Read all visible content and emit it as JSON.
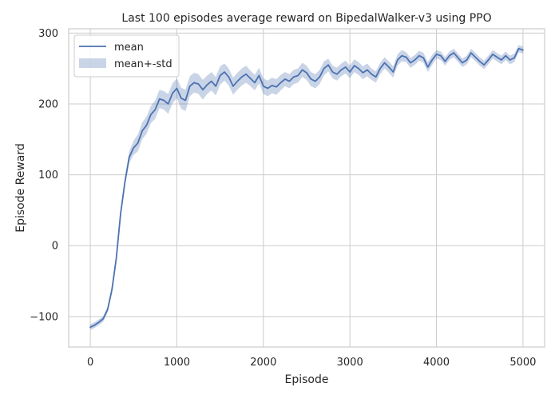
{
  "chart_data": {
    "type": "line",
    "title": "Last 100 episodes average reward on BipedalWalker-v3 using PPO",
    "xlabel": "Episode",
    "ylabel": "Episode Reward",
    "xlim": [
      -250,
      5250
    ],
    "ylim": [
      -143,
      306
    ],
    "x_ticks": [
      0,
      1000,
      2000,
      3000,
      4000,
      5000
    ],
    "y_ticks": [
      -100,
      0,
      100,
      200,
      300
    ],
    "x_tick_labels": [
      "0",
      "1000",
      "2000",
      "3000",
      "4000",
      "5000"
    ],
    "y_tick_labels": [
      "−100",
      "0",
      "100",
      "200",
      "300"
    ],
    "grid": true,
    "legend_position": "top-left",
    "legend": {
      "mean_label": "mean",
      "band_label": "mean+-std"
    },
    "colors": {
      "mean": "#4c72b0",
      "band": "#4c72b0",
      "grid": "#cccccc",
      "spine": "#cccccc"
    },
    "series": [
      {
        "name": "mean",
        "x": [
          0,
          50,
          100,
          150,
          200,
          250,
          300,
          350,
          400,
          450,
          500,
          550,
          600,
          650,
          700,
          750,
          800,
          850,
          900,
          950,
          1000,
          1050,
          1100,
          1150,
          1200,
          1250,
          1300,
          1350,
          1400,
          1450,
          1500,
          1550,
          1600,
          1650,
          1700,
          1750,
          1800,
          1850,
          1900,
          1950,
          2000,
          2050,
          2100,
          2150,
          2200,
          2250,
          2300,
          2350,
          2400,
          2450,
          2500,
          2550,
          2600,
          2650,
          2700,
          2750,
          2800,
          2850,
          2900,
          2950,
          3000,
          3050,
          3100,
          3150,
          3200,
          3250,
          3300,
          3350,
          3400,
          3450,
          3500,
          3550,
          3600,
          3650,
          3700,
          3750,
          3800,
          3850,
          3900,
          3950,
          4000,
          4050,
          4100,
          4150,
          4200,
          4250,
          4300,
          4350,
          4400,
          4450,
          4500,
          4550,
          4600,
          4650,
          4700,
          4750,
          4800,
          4850,
          4900,
          4950,
          5000
        ],
        "y": [
          -115,
          -112,
          -108,
          -103,
          -90,
          -62,
          -18,
          45,
          90,
          125,
          138,
          145,
          162,
          170,
          185,
          192,
          207,
          205,
          200,
          215,
          222,
          208,
          205,
          225,
          230,
          228,
          220,
          227,
          232,
          225,
          240,
          245,
          238,
          225,
          232,
          238,
          242,
          236,
          230,
          240,
          225,
          222,
          226,
          224,
          230,
          235,
          232,
          238,
          240,
          248,
          244,
          235,
          232,
          238,
          250,
          255,
          245,
          242,
          248,
          252,
          245,
          254,
          250,
          244,
          248,
          242,
          238,
          250,
          258,
          252,
          245,
          262,
          268,
          266,
          258,
          262,
          268,
          265,
          252,
          262,
          270,
          268,
          260,
          268,
          272,
          265,
          258,
          262,
          272,
          266,
          260,
          255,
          262,
          270,
          266,
          262,
          268,
          262,
          265,
          278,
          276
        ],
        "std": [
          4,
          4,
          4,
          4,
          4,
          5,
          5,
          5,
          6,
          8,
          10,
          12,
          12,
          12,
          12,
          13,
          13,
          13,
          14,
          14,
          14,
          15,
          15,
          14,
          14,
          14,
          14,
          13,
          13,
          13,
          13,
          12,
          12,
          12,
          12,
          12,
          12,
          11,
          11,
          11,
          11,
          11,
          11,
          11,
          11,
          10,
          10,
          10,
          10,
          10,
          10,
          10,
          10,
          10,
          10,
          9,
          9,
          9,
          9,
          9,
          9,
          9,
          9,
          9,
          9,
          8,
          8,
          8,
          8,
          8,
          8,
          8,
          8,
          7,
          7,
          7,
          7,
          7,
          7,
          7,
          6,
          6,
          6,
          6,
          6,
          6,
          6,
          6,
          6,
          6,
          6,
          6,
          6,
          6,
          6,
          6,
          6,
          6,
          6,
          5,
          5
        ]
      }
    ]
  }
}
